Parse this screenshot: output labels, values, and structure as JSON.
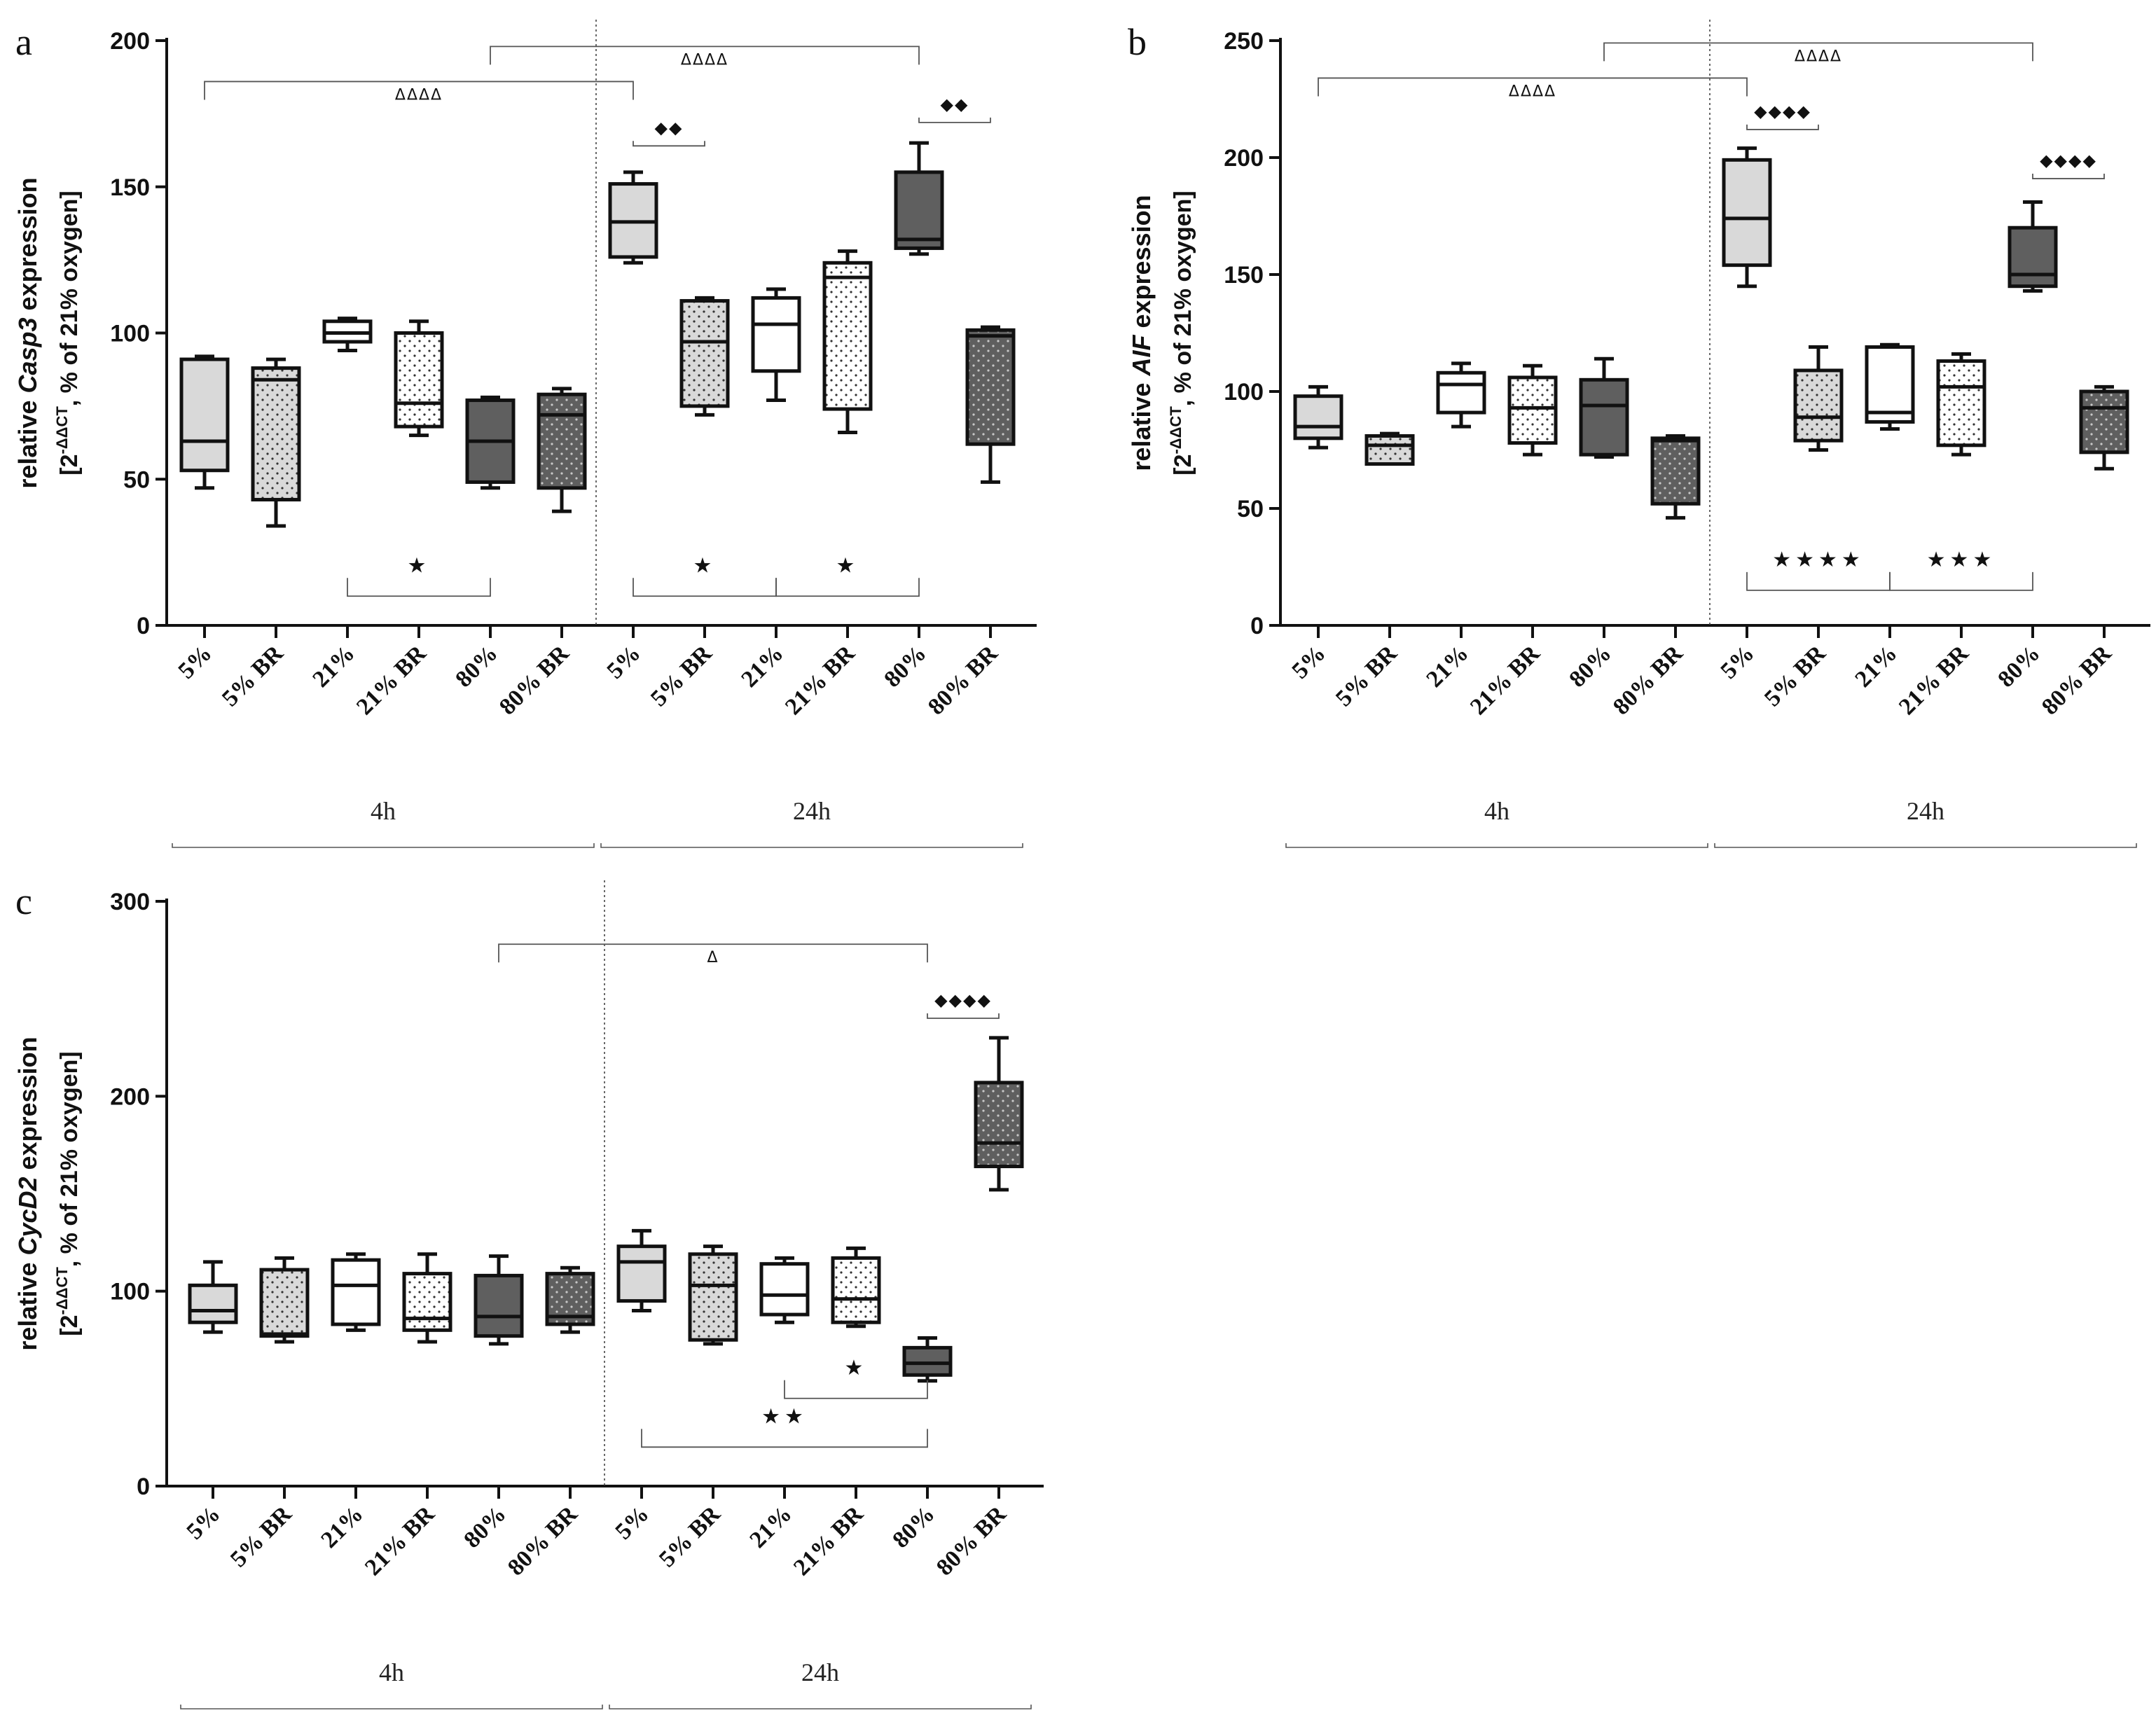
{
  "figure": {
    "panels": [
      "a",
      "b",
      "c"
    ]
  },
  "chart_data": [
    {
      "type": "box",
      "panel": "a",
      "ylabel_prefix": "relative ",
      "gene": "Casp3",
      "ylabel_suffix": " expression",
      "ysub_pre": "[2",
      "ysub_sup": "-ΔΔCT",
      "ysub_post": ", % of 21% oxygen]",
      "ylim": [
        0,
        200
      ],
      "yticks": [
        0,
        50,
        100,
        150,
        200
      ],
      "categories": [
        "5%",
        "5% BR",
        "21%",
        "21% BR",
        "80%",
        "80% BR",
        "5%",
        "5% BR",
        "21%",
        "21% BR",
        "80%",
        "80% BR"
      ],
      "groups": [
        {
          "label": "4h",
          "from": 0,
          "to": 5
        },
        {
          "label": "24h",
          "from": 6,
          "to": 11
        }
      ],
      "boxes": [
        {
          "min": 47,
          "q1": 53,
          "median": 63,
          "q3": 91,
          "max": 92,
          "fill": "#d9d9d9",
          "pattern": "none"
        },
        {
          "min": 34,
          "q1": 43,
          "median": 84,
          "q3": 88,
          "max": 91,
          "fill": "#d9d9d9",
          "pattern": "dots"
        },
        {
          "min": 94,
          "q1": 97,
          "median": 100,
          "q3": 104,
          "max": 105,
          "fill": "#ffffff",
          "pattern": "none"
        },
        {
          "min": 65,
          "q1": 68,
          "median": 76,
          "q3": 100,
          "max": 104,
          "fill": "#ffffff",
          "pattern": "dots"
        },
        {
          "min": 47,
          "q1": 49,
          "median": 63,
          "q3": 77,
          "max": 78,
          "fill": "#5f5f5f",
          "pattern": "none"
        },
        {
          "min": 39,
          "q1": 47,
          "median": 72,
          "q3": 79,
          "max": 81,
          "fill": "#5f5f5f",
          "pattern": "dots"
        },
        {
          "min": 124,
          "q1": 126,
          "median": 138,
          "q3": 151,
          "max": 155,
          "fill": "#d9d9d9",
          "pattern": "none"
        },
        {
          "min": 72,
          "q1": 75,
          "median": 97,
          "q3": 111,
          "max": 112,
          "fill": "#d9d9d9",
          "pattern": "dots"
        },
        {
          "min": 77,
          "q1": 87,
          "median": 103,
          "q3": 112,
          "max": 115,
          "fill": "#ffffff",
          "pattern": "none"
        },
        {
          "min": 66,
          "q1": 74,
          "median": 119,
          "q3": 124,
          "max": 128,
          "fill": "#ffffff",
          "pattern": "dots"
        },
        {
          "min": 127,
          "q1": 129,
          "median": 132,
          "q3": 155,
          "max": 165,
          "fill": "#5f5f5f",
          "pattern": "none"
        },
        {
          "min": 49,
          "q1": 62,
          "median": 99,
          "q3": 101,
          "max": 102,
          "fill": "#5f5f5f",
          "pattern": "dots"
        }
      ],
      "annotations": [
        {
          "symbol": "ΔΔΔΔ",
          "from": 0,
          "to": 6,
          "level": 186,
          "kind": "up",
          "size": "small"
        },
        {
          "symbol": "ΔΔΔΔ",
          "from": 4,
          "to": 10,
          "level": 198,
          "kind": "up",
          "size": "small"
        },
        {
          "symbol": "◆◆",
          "from": 6,
          "to": 7,
          "level": 164,
          "kind": "flat",
          "size": "dia"
        },
        {
          "symbol": "◆◆",
          "from": 10,
          "to": 11,
          "level": 172,
          "kind": "flat",
          "size": "dia"
        },
        {
          "symbol": "★",
          "from": 2,
          "to": 4,
          "level": 10,
          "kind": "down",
          "size": "star"
        },
        {
          "symbol": "★",
          "from": 6,
          "to": 8,
          "level": 10,
          "kind": "down",
          "size": "star"
        },
        {
          "symbol": "★",
          "from": 8,
          "to": 10,
          "level": 10,
          "kind": "down",
          "size": "star"
        }
      ]
    },
    {
      "type": "box",
      "panel": "b",
      "ylabel_prefix": "relative ",
      "gene": "AIF",
      "ylabel_suffix": " expression",
      "ysub_pre": "[2",
      "ysub_sup": "-ΔΔCT",
      "ysub_post": ", % of 21% oxygen]",
      "ylim": [
        0,
        250
      ],
      "yticks": [
        0,
        50,
        100,
        150,
        200,
        250
      ],
      "categories": [
        "5%",
        "5% BR",
        "21%",
        "21% BR",
        "80%",
        "80% BR",
        "5%",
        "5% BR",
        "21%",
        "21% BR",
        "80%",
        "80% BR"
      ],
      "groups": [
        {
          "label": "4h",
          "from": 0,
          "to": 5
        },
        {
          "label": "24h",
          "from": 6,
          "to": 11
        }
      ],
      "boxes": [
        {
          "min": 76,
          "q1": 80,
          "median": 85,
          "q3": 98,
          "max": 102,
          "fill": "#d9d9d9",
          "pattern": "none"
        },
        {
          "min": 69,
          "q1": 69,
          "median": 77,
          "q3": 81,
          "max": 82,
          "fill": "#d9d9d9",
          "pattern": "dots"
        },
        {
          "min": 85,
          "q1": 91,
          "median": 103,
          "q3": 108,
          "max": 112,
          "fill": "#ffffff",
          "pattern": "none"
        },
        {
          "min": 73,
          "q1": 78,
          "median": 93,
          "q3": 106,
          "max": 111,
          "fill": "#ffffff",
          "pattern": "dots"
        },
        {
          "min": 72,
          "q1": 73,
          "median": 94,
          "q3": 105,
          "max": 114,
          "fill": "#5f5f5f",
          "pattern": "none"
        },
        {
          "min": 46,
          "q1": 52,
          "median": 79,
          "q3": 80,
          "max": 81,
          "fill": "#5f5f5f",
          "pattern": "dots"
        },
        {
          "min": 145,
          "q1": 154,
          "median": 174,
          "q3": 199,
          "max": 204,
          "fill": "#d9d9d9",
          "pattern": "none"
        },
        {
          "min": 75,
          "q1": 79,
          "median": 89,
          "q3": 109,
          "max": 119,
          "fill": "#d9d9d9",
          "pattern": "dots"
        },
        {
          "min": 84,
          "q1": 87,
          "median": 91,
          "q3": 119,
          "max": 120,
          "fill": "#ffffff",
          "pattern": "none"
        },
        {
          "min": 73,
          "q1": 77,
          "median": 102,
          "q3": 113,
          "max": 116,
          "fill": "#ffffff",
          "pattern": "dots"
        },
        {
          "min": 143,
          "q1": 145,
          "median": 150,
          "q3": 170,
          "max": 181,
          "fill": "#5f5f5f",
          "pattern": "none"
        },
        {
          "min": 67,
          "q1": 74,
          "median": 93,
          "q3": 100,
          "max": 102,
          "fill": "#5f5f5f",
          "pattern": "dots"
        }
      ],
      "annotations": [
        {
          "symbol": "ΔΔΔΔ",
          "from": 0,
          "to": 6,
          "level": 234,
          "kind": "up",
          "size": "small"
        },
        {
          "symbol": "ΔΔΔΔ",
          "from": 4,
          "to": 10,
          "level": 249,
          "kind": "up",
          "size": "small"
        },
        {
          "symbol": "◆◆◆◆",
          "from": 6,
          "to": 7,
          "level": 212,
          "kind": "flat",
          "size": "dia"
        },
        {
          "symbol": "◆◆◆◆",
          "from": 10,
          "to": 11,
          "level": 191,
          "kind": "flat",
          "size": "dia"
        },
        {
          "symbol": "★★★★",
          "from": 6,
          "to": 8,
          "level": 15,
          "kind": "down",
          "size": "star"
        },
        {
          "symbol": "★★★",
          "from": 8,
          "to": 10,
          "level": 15,
          "kind": "down",
          "size": "star"
        }
      ]
    },
    {
      "type": "box",
      "panel": "c",
      "ylabel_prefix": "relative ",
      "gene": "CycD2",
      "ylabel_suffix": " expression",
      "ysub_pre": "[2",
      "ysub_sup": "-ΔΔCT",
      "ysub_post": ", % of 21% oxygen]",
      "ylim": [
        0,
        300
      ],
      "yticks": [
        0,
        100,
        200,
        300
      ],
      "categories": [
        "5%",
        "5% BR",
        "21%",
        "21% BR",
        "80%",
        "80% BR",
        "5%",
        "5% BR",
        "21%",
        "21% BR",
        "80%",
        "80% BR"
      ],
      "groups": [
        {
          "label": "4h",
          "from": 0,
          "to": 5
        },
        {
          "label": "24h",
          "from": 6,
          "to": 11
        }
      ],
      "boxes": [
        {
          "min": 79,
          "q1": 84,
          "median": 90,
          "q3": 103,
          "max": 115,
          "fill": "#d9d9d9",
          "pattern": "none"
        },
        {
          "min": 74,
          "q1": 77,
          "median": 78,
          "q3": 111,
          "max": 117,
          "fill": "#d9d9d9",
          "pattern": "dots"
        },
        {
          "min": 80,
          "q1": 83,
          "median": 103,
          "q3": 116,
          "max": 119,
          "fill": "#ffffff",
          "pattern": "none"
        },
        {
          "min": 74,
          "q1": 80,
          "median": 86,
          "q3": 109,
          "max": 119,
          "fill": "#ffffff",
          "pattern": "dots"
        },
        {
          "min": 73,
          "q1": 77,
          "median": 87,
          "q3": 108,
          "max": 118,
          "fill": "#5f5f5f",
          "pattern": "none"
        },
        {
          "min": 79,
          "q1": 83,
          "median": 87,
          "q3": 109,
          "max": 112,
          "fill": "#5f5f5f",
          "pattern": "dots"
        },
        {
          "min": 90,
          "q1": 95,
          "median": 115,
          "q3": 123,
          "max": 131,
          "fill": "#d9d9d9",
          "pattern": "none"
        },
        {
          "min": 73,
          "q1": 75,
          "median": 103,
          "q3": 119,
          "max": 123,
          "fill": "#d9d9d9",
          "pattern": "dots"
        },
        {
          "min": 84,
          "q1": 88,
          "median": 98,
          "q3": 114,
          "max": 117,
          "fill": "#ffffff",
          "pattern": "none"
        },
        {
          "min": 82,
          "q1": 84,
          "median": 96,
          "q3": 117,
          "max": 122,
          "fill": "#ffffff",
          "pattern": "dots"
        },
        {
          "min": 54,
          "q1": 57,
          "median": 63,
          "q3": 71,
          "max": 76,
          "fill": "#5f5f5f",
          "pattern": "none"
        },
        {
          "min": 152,
          "q1": 164,
          "median": 176,
          "q3": 207,
          "max": 230,
          "fill": "#5f5f5f",
          "pattern": "dots"
        }
      ],
      "annotations": [
        {
          "symbol": "Δ",
          "from": 4,
          "to": 10,
          "level": 278,
          "kind": "up",
          "size": "small"
        },
        {
          "symbol": "◆◆◆◆",
          "from": 10,
          "to": 11,
          "level": 240,
          "kind": "flat",
          "size": "dia"
        },
        {
          "symbol": "★",
          "from": 8,
          "to": 10,
          "level": 45,
          "kind": "down",
          "size": "star"
        },
        {
          "symbol": "★★",
          "from": 6,
          "to": 10,
          "level": 20,
          "kind": "down",
          "size": "star"
        }
      ]
    }
  ]
}
